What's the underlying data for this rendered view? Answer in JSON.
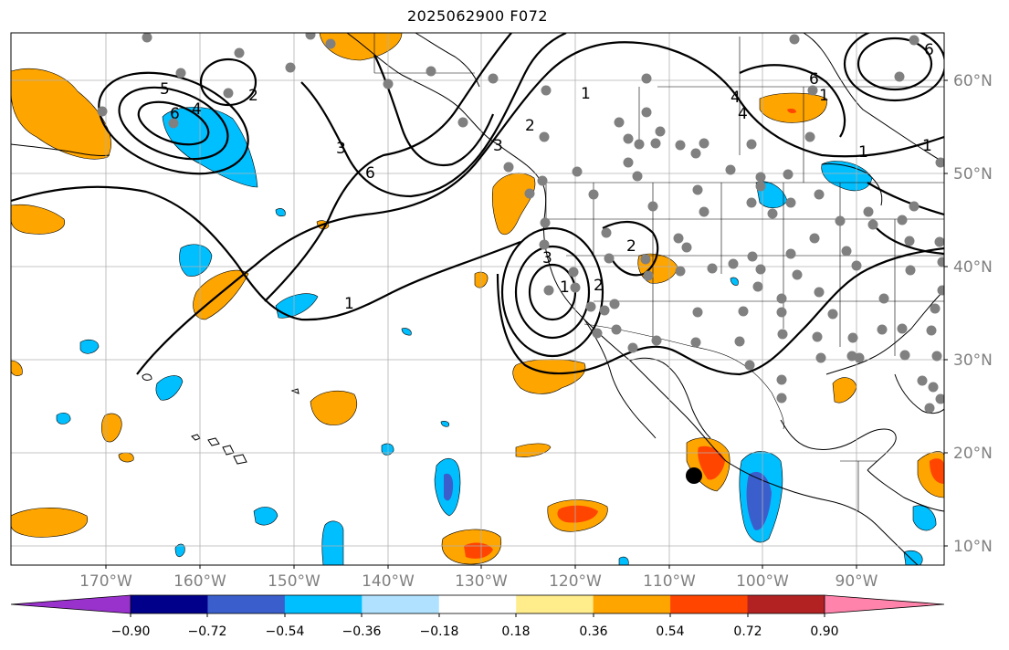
{
  "title": "2025062900 F072",
  "map": {
    "lon_ticks": [
      "170°W",
      "160°W",
      "150°W",
      "140°W",
      "130°W",
      "120°W",
      "110°W",
      "100°W",
      "90°W"
    ],
    "lat_ticks": [
      "60°N",
      "50°N",
      "40°N",
      "30°N",
      "20°N",
      "10°N"
    ],
    "contour_labels": [
      "5",
      "4",
      "6",
      "3",
      "6",
      "2",
      "1",
      "3",
      "2",
      "1",
      "3",
      "1",
      "2",
      "4",
      "6",
      "1",
      "1",
      "2",
      "4",
      "6",
      "1"
    ]
  },
  "colorbar": {
    "tick_labels": [
      "−0.90",
      "−0.72",
      "−0.54",
      "−0.36",
      "−0.18",
      "0.18",
      "0.36",
      "0.54",
      "0.72",
      "0.90"
    ],
    "colors": [
      "#9932cc",
      "#00008b",
      "#3a5fcd",
      "#00bfff",
      "#b0e2ff",
      "#ffffff",
      "#ffec8b",
      "#ffa500",
      "#ff4500",
      "#b22222",
      "#ff83aa"
    ]
  },
  "colors": {
    "negative_light": "#b0e2ff",
    "negative_mid": "#00bfff",
    "negative_strong": "#3a5fcd",
    "positive_light": "#ffec8b",
    "positive_mid": "#ffa500",
    "positive_strong": "#ff4500",
    "station_dot": "#808080",
    "grid": "#b0b0b0"
  }
}
